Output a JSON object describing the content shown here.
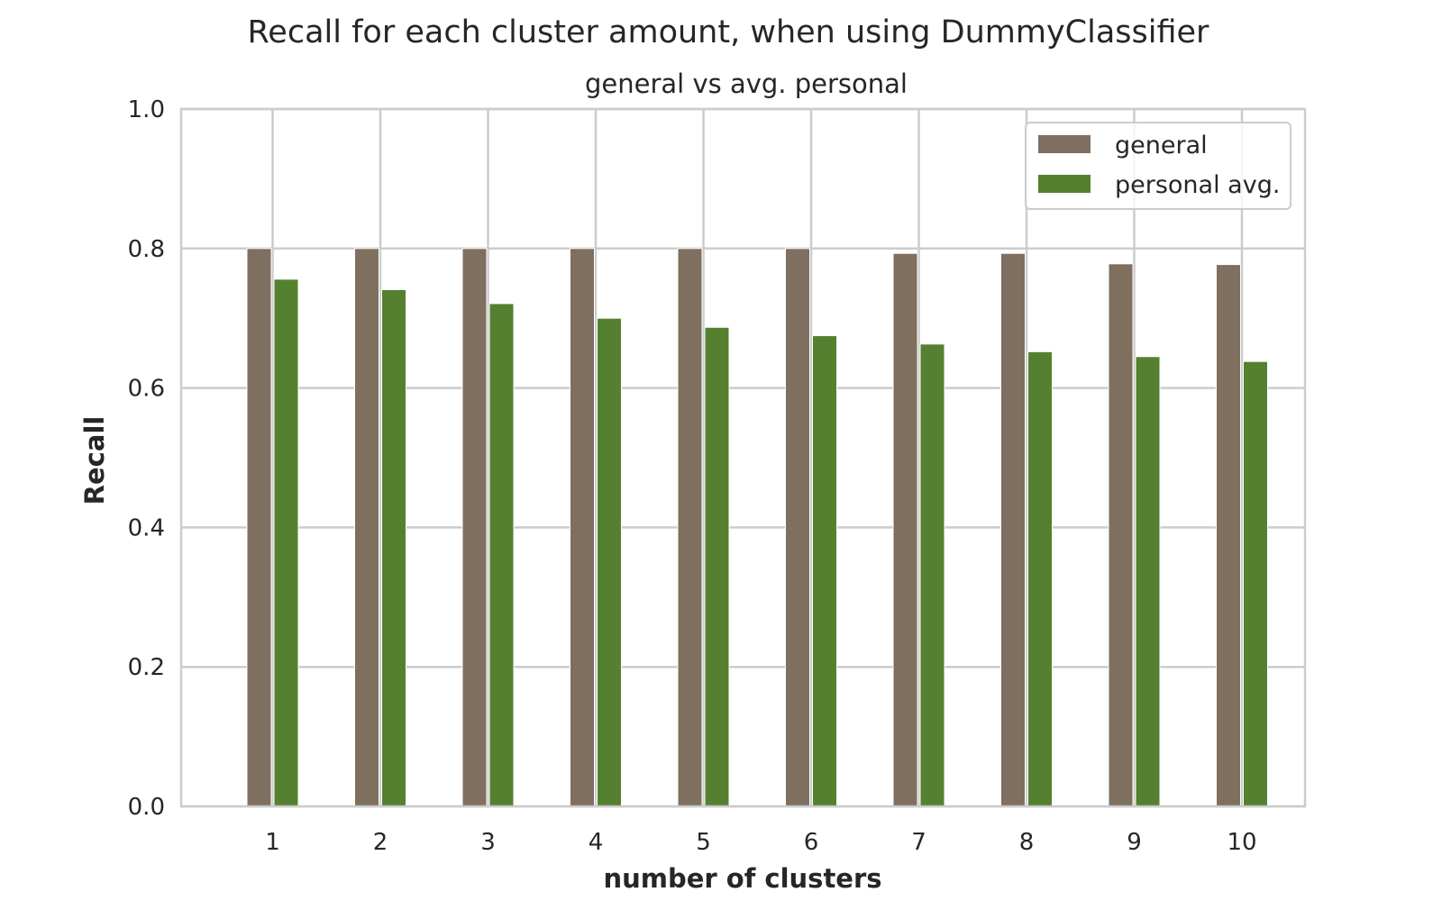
{
  "chart_data": {
    "type": "bar",
    "title": "Recall for each cluster amount, when using DummyClassifier",
    "subtitle": "general vs avg. personal",
    "xlabel": "number of clusters",
    "ylabel": "Recall",
    "categories": [
      "1",
      "2",
      "3",
      "4",
      "5",
      "6",
      "7",
      "8",
      "9",
      "10"
    ],
    "ylim": [
      0,
      1.0
    ],
    "yticks": [
      "0.0",
      "0.2",
      "0.4",
      "0.6",
      "0.8",
      "1.0"
    ],
    "grid": true,
    "legend_position": "top-right",
    "series": [
      {
        "name": "general",
        "color": "#7f6f5f",
        "values": [
          0.8,
          0.8,
          0.8,
          0.8,
          0.8,
          0.8,
          0.793,
          0.793,
          0.778,
          0.777
        ]
      },
      {
        "name": "personal avg.",
        "color": "#558030",
        "values": [
          0.756,
          0.741,
          0.721,
          0.7,
          0.687,
          0.675,
          0.663,
          0.652,
          0.645,
          0.638
        ]
      }
    ]
  }
}
